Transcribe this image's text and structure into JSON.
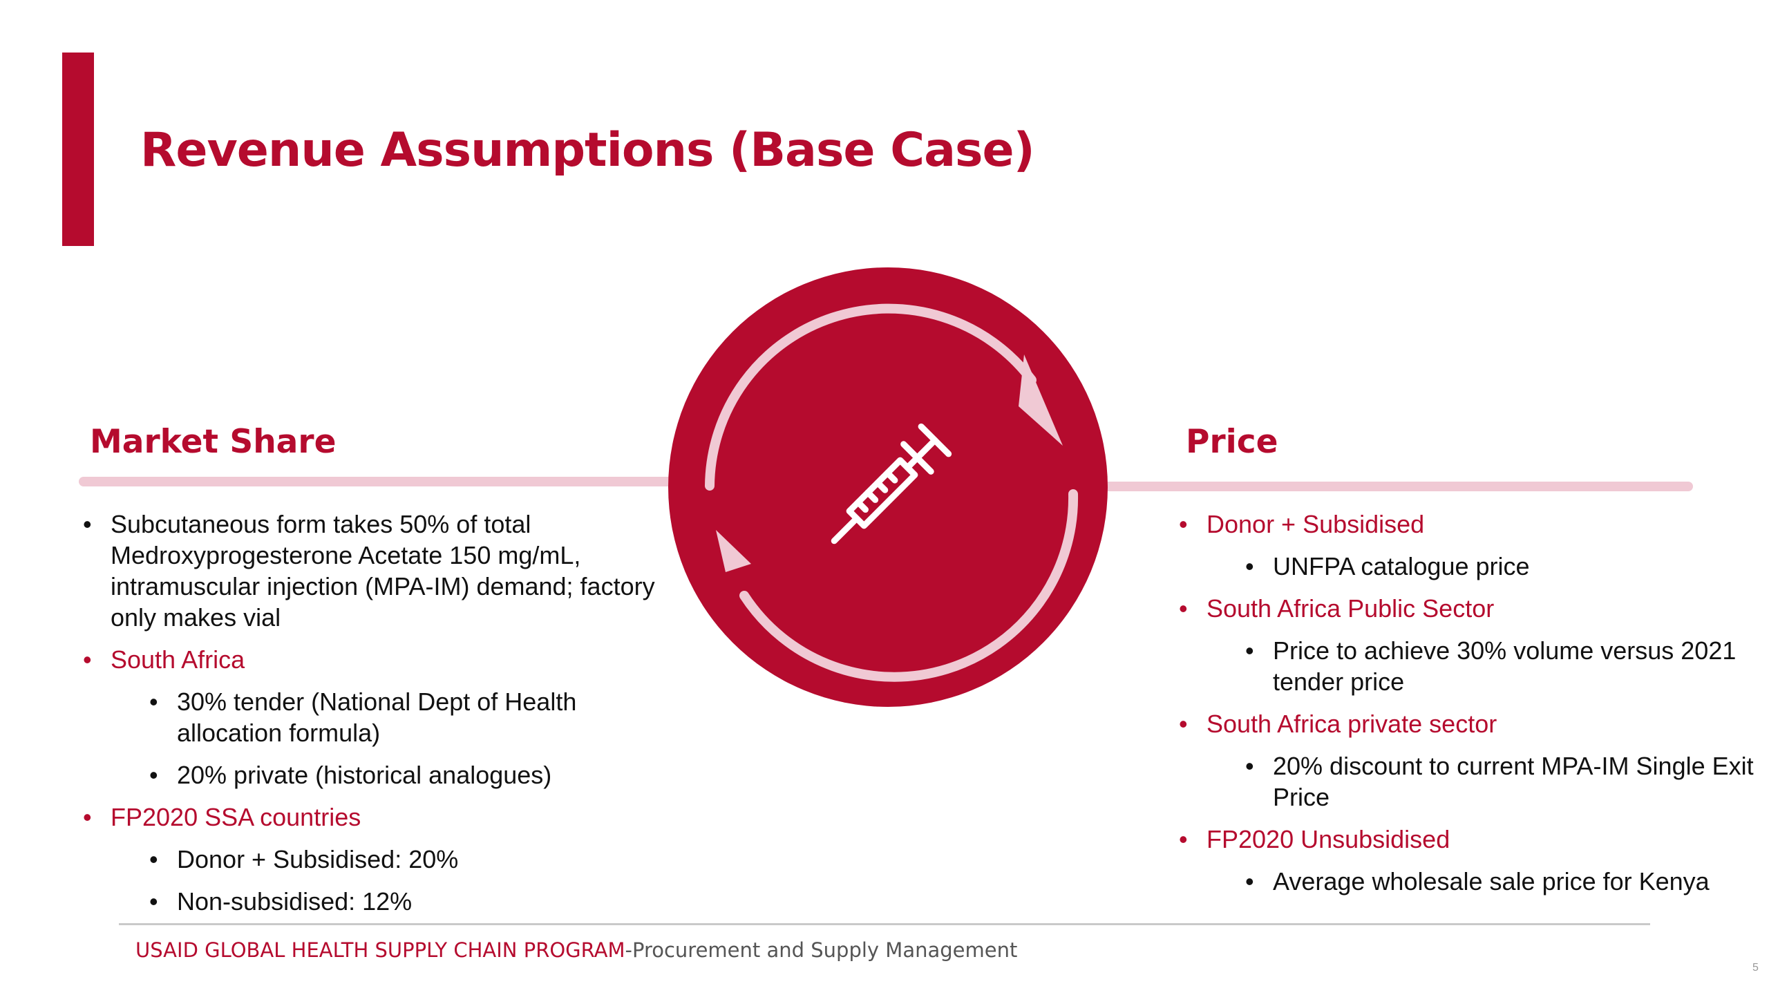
{
  "title": "Revenue Assumptions (Base Case)",
  "colors": {
    "accent": "#b50b2e",
    "accent_light": "#f0c9d4",
    "text": "#111111"
  },
  "graphic": {
    "icon": "syringe-icon",
    "arrows": "cycle-arrows-icon"
  },
  "market_share": {
    "heading": "Market Share",
    "items": [
      {
        "level": 1,
        "style": "black",
        "text": "Subcutaneous form takes 50% of total Medroxyprogesterone Acetate 150 mg/mL, intramuscular injection (MPA-IM) demand; factory only makes vial"
      },
      {
        "level": 1,
        "style": "red",
        "text": "South Africa"
      },
      {
        "level": 2,
        "style": "black",
        "text": "30% tender (National Dept of Health allocation formula)"
      },
      {
        "level": 2,
        "style": "black",
        "text": "20% private (historical analogues)"
      },
      {
        "level": 1,
        "style": "red",
        "text": "FP2020 SSA countries"
      },
      {
        "level": 2,
        "style": "black",
        "text": "Donor + Subsidised: 20%"
      },
      {
        "level": 2,
        "style": "black",
        "text": "Non-subsidised: 12%"
      }
    ]
  },
  "price": {
    "heading": "Price",
    "items": [
      {
        "level": 1,
        "style": "red",
        "text": "Donor + Subsidised"
      },
      {
        "level": 2,
        "style": "black",
        "text": "UNFPA catalogue price"
      },
      {
        "level": 1,
        "style": "red",
        "text": "South Africa Public Sector"
      },
      {
        "level": 2,
        "style": "black",
        "text": "Price to achieve 30% volume versus 2021 tender price"
      },
      {
        "level": 1,
        "style": "red",
        "text": "South Africa private sector"
      },
      {
        "level": 2,
        "style": "black",
        "text": "20% discount to current MPA-IM Single Exit Price"
      },
      {
        "level": 1,
        "style": "red",
        "text": "FP2020 Unsubsidised"
      },
      {
        "level": 2,
        "style": "black",
        "text": "Average wholesale sale price for Kenya"
      }
    ]
  },
  "footer": {
    "program": "USAID GLOBAL HEALTH SUPPLY CHAIN PROGRAM",
    "subtitle": "-Procurement and Supply Management"
  },
  "page_number": "5"
}
